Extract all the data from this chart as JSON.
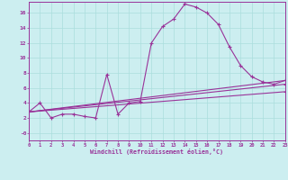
{
  "xlabel": "Windchill (Refroidissement éolien,°C)",
  "xlim": [
    0,
    23
  ],
  "ylim": [
    -1,
    17.5
  ],
  "yticks": [
    0,
    2,
    4,
    6,
    8,
    10,
    12,
    14,
    16
  ],
  "ytick_labels": [
    "-0",
    "2",
    "4",
    "6",
    "8",
    "10",
    "12",
    "14",
    "16"
  ],
  "xticks": [
    0,
    1,
    2,
    3,
    4,
    5,
    6,
    7,
    8,
    9,
    10,
    11,
    12,
    13,
    14,
    15,
    16,
    17,
    18,
    19,
    20,
    21,
    22,
    23
  ],
  "bg_color": "#cceef0",
  "line_color": "#993399",
  "grid_color": "#aadddd",
  "line1_x": [
    0,
    1,
    2,
    3,
    4,
    5,
    6,
    7,
    8,
    9,
    10,
    11,
    12,
    13,
    14,
    15,
    16,
    17,
    18,
    19,
    20,
    21,
    22,
    23
  ],
  "line1_y": [
    2.8,
    4.0,
    2.0,
    2.5,
    2.5,
    2.2,
    2.0,
    7.8,
    2.5,
    4.0,
    4.2,
    12.0,
    14.2,
    15.2,
    17.2,
    16.8,
    16.0,
    14.5,
    11.5,
    9.0,
    7.5,
    6.8,
    6.5,
    7.0
  ],
  "line2_x": [
    0,
    23
  ],
  "line2_y": [
    2.8,
    7.0
  ],
  "line3_x": [
    0,
    23
  ],
  "line3_y": [
    2.8,
    6.5
  ],
  "line4_x": [
    0,
    23
  ],
  "line4_y": [
    2.8,
    5.5
  ]
}
